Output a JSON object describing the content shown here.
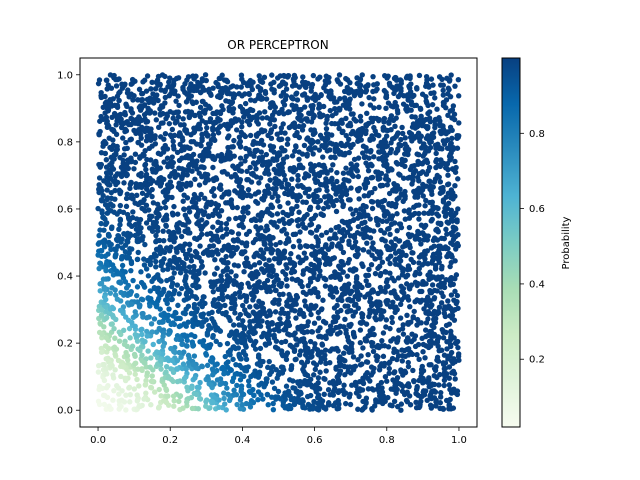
{
  "chart_data": {
    "type": "scatter",
    "title": "OR PERCEPTRON",
    "xlabel": "",
    "ylabel": "",
    "xlim": [
      -0.05,
      1.05
    ],
    "ylim": [
      -0.05,
      1.05
    ],
    "x_ticks": [
      0.0,
      0.2,
      0.4,
      0.6,
      0.8,
      1.0
    ],
    "y_ticks": [
      0.0,
      0.2,
      0.4,
      0.6,
      0.8,
      1.0
    ],
    "x_tick_labels": [
      "0.0",
      "0.2",
      "0.4",
      "0.6",
      "0.8",
      "1.0"
    ],
    "y_tick_labels": [
      "0.0",
      "0.2",
      "0.4",
      "0.6",
      "0.8",
      "1.0"
    ],
    "grid": false,
    "x_range_data": [
      0.0,
      1.0
    ],
    "y_range_data": [
      0.0,
      1.0
    ],
    "point_count": 5000,
    "color_rule": "probability = sigmoid(w1*x + w2*y + b), OR gate classifier",
    "logistic": {
      "w1": 11.0,
      "w2": 11.0,
      "b": -3.3
    },
    "colormap": "GnBu",
    "colormap_stops": [
      "#f7fcf0",
      "#e0f3db",
      "#ccebc5",
      "#a8ddb5",
      "#7bccc4",
      "#4eb3d3",
      "#2b8cbe",
      "#0868ac",
      "#084081"
    ],
    "colorbar": {
      "label": "Probability",
      "range": [
        0.02,
        1.0
      ],
      "ticks": [
        0.2,
        0.4,
        0.6,
        0.8
      ],
      "tick_labels": [
        "0.2",
        "0.4",
        "0.6",
        "0.8"
      ]
    }
  }
}
